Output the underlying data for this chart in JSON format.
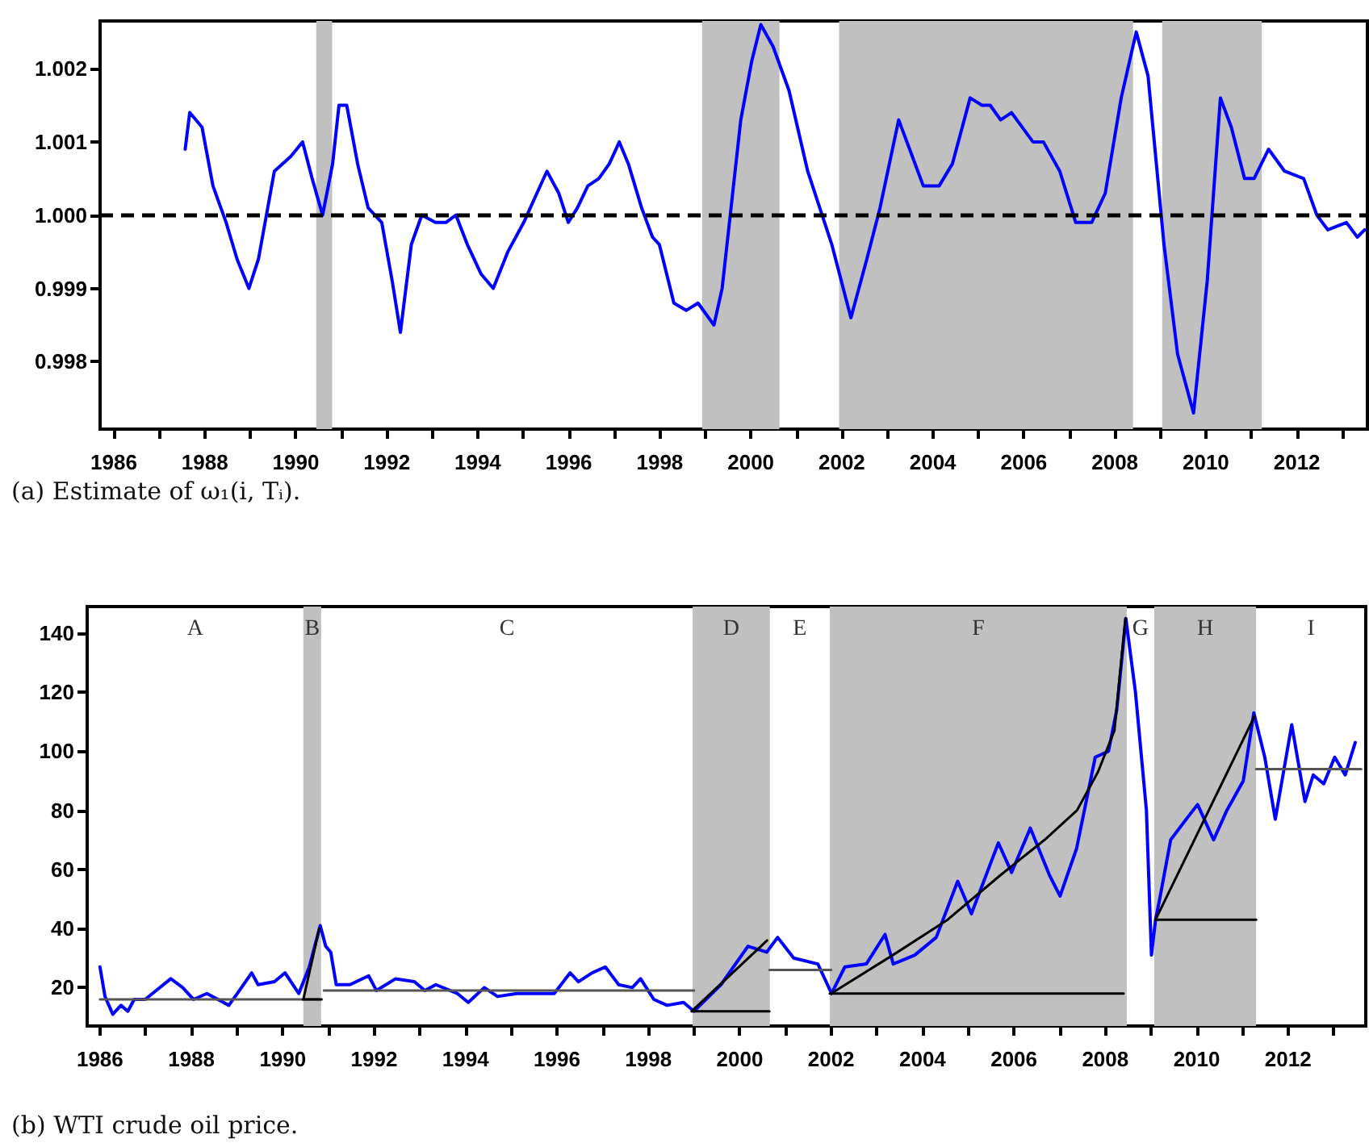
{
  "chart_data": [
    {
      "type": "line",
      "title": "(a) Estimate of ω₁(i, Tᵢ).",
      "marker": "none",
      "grid": false,
      "xlim": [
        1985.7,
        2013.55
      ],
      "ylim": [
        0.99708,
        1.00265
      ],
      "xticks": [
        1986,
        {
          "value": 1987,
          "label": null
        },
        1988,
        {
          "value": 1989,
          "label": null
        },
        1990,
        {
          "value": 1991,
          "label": null
        },
        1992,
        {
          "value": 1993,
          "label": null
        },
        1994,
        {
          "value": 1995,
          "label": null
        },
        1996,
        {
          "value": 1997,
          "label": null
        },
        1998,
        {
          "value": 1999,
          "label": null
        },
        2000,
        {
          "value": 2001,
          "label": null
        },
        2002,
        {
          "value": 2003,
          "label": null
        },
        2004,
        {
          "value": 2005,
          "label": null
        },
        2006,
        {
          "value": 2007,
          "label": null
        },
        2008,
        {
          "value": 2009,
          "label": null
        },
        2010,
        {
          "value": 2011,
          "label": null
        },
        2012,
        {
          "value": 2013,
          "label": null
        }
      ],
      "yticks": [
        0.998,
        0.999,
        {
          "value": 1,
          "label": "1.000"
        },
        1.001,
        1.002
      ],
      "ref_lines": [
        {
          "axis": "y",
          "value": 1,
          "color": "#000000",
          "line_style": "dashed"
        }
      ],
      "bands": [
        {
          "axis": "x",
          "from": 1990.45,
          "to": 1990.8,
          "color": "#c0c0c0"
        },
        {
          "axis": "x",
          "from": 1998.93,
          "to": 2000.63,
          "color": "#c0c0c0"
        },
        {
          "axis": "x",
          "from": 2001.94,
          "to": 2008.4,
          "color": "#c0c0c0"
        },
        {
          "axis": "x",
          "from": 2009.04,
          "to": 2011.23,
          "color": "#c0c0c0"
        }
      ],
      "series": [
        {
          "color": "#0000ff",
          "x": [
            1987.57,
            1987.67,
            1987.94,
            1988.18,
            1988.47,
            1988.71,
            1988.97,
            1989.18,
            1989.53,
            1989.89,
            1990.15,
            1990.36,
            1990.59,
            1990.81,
            1990.95,
            1991.12,
            1991.36,
            1991.59,
            1991.89,
            1992.12,
            1992.3,
            1992.54,
            1992.77,
            1993.07,
            1993.3,
            1993.52,
            1993.77,
            1994.07,
            1994.34,
            1994.66,
            1995.01,
            1995.3,
            1995.52,
            1995.78,
            1995.99,
            1996.19,
            1996.42,
            1996.66,
            1996.89,
            1997.11,
            1997.31,
            1997.6,
            1997.84,
            1997.99,
            1998.31,
            1998.58,
            1998.84,
            1999.19,
            1999.37,
            1999.78,
            2000.02,
            2000.22,
            2000.49,
            2000.84,
            2001.25,
            2001.78,
            2002.2,
            2002.55,
            2002.84,
            2003.25,
            2003.55,
            2003.79,
            2004.14,
            2004.43,
            2004.82,
            2005.08,
            2005.26,
            2005.49,
            2005.73,
            2006.2,
            2006.43,
            2006.79,
            2007.14,
            2007.49,
            2007.79,
            2008.14,
            2008.47,
            2008.73,
            2009.08,
            2009.38,
            2009.73,
            2010.03,
            2010.32,
            2010.56,
            2010.85,
            2011.06,
            2011.38,
            2011.73,
            2012.15,
            2012.44,
            2012.68,
            2013.09,
            2013.33,
            2013.49
          ],
          "values": [
            1.0009,
            1.0014,
            1.0012,
            1.0004,
            0.9999,
            0.9994,
            0.999,
            0.9994,
            1.0006,
            1.0008,
            1.001,
            1.0005,
            1.0,
            1.0007,
            1.0015,
            1.0015,
            1.0007,
            1.0001,
            0.9999,
            0.9991,
            0.9984,
            0.9996,
            1.0,
            0.9999,
            0.9999,
            1.0,
            0.9996,
            0.9992,
            0.999,
            0.9995,
            0.9999,
            1.0003,
            1.0006,
            1.0003,
            0.9999,
            1.0001,
            1.0004,
            1.0005,
            1.0007,
            1.001,
            1.0007,
            1.0001,
            0.9997,
            0.9996,
            0.9988,
            0.9987,
            0.9988,
            0.9985,
            0.999,
            1.0013,
            1.0021,
            1.0026,
            1.0023,
            1.0017,
            1.0006,
            0.9996,
            0.9986,
            0.9994,
            1.0001,
            1.0013,
            1.0008,
            1.0004,
            1.0004,
            1.0007,
            1.0016,
            1.0015,
            1.0015,
            1.0013,
            1.0014,
            1.001,
            1.001,
            1.0006,
            0.9999,
            0.9999,
            1.0003,
            1.0016,
            1.0025,
            1.0019,
            0.9996,
            0.9981,
            0.9973,
            0.9991,
            1.0016,
            1.0012,
            1.0005,
            1.0005,
            1.0009,
            1.0006,
            1.0005,
            1.0,
            0.9998,
            0.9999,
            0.9997,
            0.9998
          ]
        }
      ]
    },
    {
      "type": "line",
      "title": "(b) WTI crude oil price.",
      "marker": "none",
      "grid": false,
      "xlim": [
        1985.72,
        2013.7
      ],
      "ylim": [
        7,
        149
      ],
      "xticks": [
        1986,
        {
          "value": 1987,
          "label": null
        },
        1988,
        {
          "value": 1989,
          "label": null
        },
        1990,
        {
          "value": 1991,
          "label": null
        },
        1992,
        {
          "value": 1993,
          "label": null
        },
        1994,
        {
          "value": 1995,
          "label": null
        },
        1996,
        {
          "value": 1997,
          "label": null
        },
        1998,
        {
          "value": 1999,
          "label": null
        },
        2000,
        {
          "value": 2001,
          "label": null
        },
        2002,
        {
          "value": 2003,
          "label": null
        },
        2004,
        {
          "value": 2005,
          "label": null
        },
        2006,
        {
          "value": 2007,
          "label": null
        },
        2008,
        {
          "value": 2009,
          "label": null
        },
        2010,
        {
          "value": 2011,
          "label": null
        },
        2012,
        {
          "value": 2013,
          "label": null
        }
      ],
      "yticks": [
        20,
        40,
        60,
        80,
        100,
        120,
        140
      ],
      "bands": [
        {
          "axis": "x",
          "from": 1990.45,
          "to": 1990.84,
          "color": "#c0c0c0"
        },
        {
          "axis": "x",
          "from": 1998.97,
          "to": 2000.66,
          "color": "#c0c0c0"
        },
        {
          "axis": "x",
          "from": 2001.97,
          "to": 2008.47,
          "color": "#c0c0c0"
        },
        {
          "axis": "x",
          "from": 2009.07,
          "to": 2011.3,
          "color": "#c0c0c0"
        }
      ],
      "annotations": [
        "A",
        "B",
        "C",
        "D",
        "E",
        "F",
        "G",
        "H",
        "I"
      ],
      "series": [
        {
          "color": "#0000ff",
          "x": [
            1986.0,
            1986.11,
            1986.28,
            1986.46,
            1986.61,
            1986.75,
            1986.99,
            1987.23,
            1987.55,
            1987.81,
            1988.05,
            1988.34,
            1988.58,
            1988.82,
            1989.05,
            1989.32,
            1989.46,
            1989.82,
            1990.05,
            1990.35,
            1990.58,
            1990.82,
            1990.94,
            1991.05,
            1991.17,
            1991.47,
            1991.88,
            1992.05,
            1992.47,
            1992.88,
            1993.11,
            1993.35,
            1993.82,
            1994.06,
            1994.41,
            1994.7,
            1995.12,
            1995.47,
            1995.94,
            1996.29,
            1996.47,
            1996.77,
            1997.06,
            1997.35,
            1997.65,
            1997.83,
            1998.12,
            1998.41,
            1998.77,
            1999.0,
            1999.59,
            2000.18,
            2000.59,
            2000.83,
            2001.18,
            2001.71,
            2002.01,
            2002.3,
            2002.77,
            2003.18,
            2003.36,
            2003.83,
            2004.3,
            2004.77,
            2005.07,
            2005.66,
            2005.95,
            2006.36,
            2006.78,
            2007.01,
            2007.37,
            2007.78,
            2008.07,
            2008.25,
            2008.45,
            2008.66,
            2008.9,
            2009.01,
            2009.1,
            2009.19,
            2009.43,
            2009.72,
            2010.02,
            2010.37,
            2010.66,
            2011.02,
            2011.25,
            2011.49,
            2011.72,
            2012.08,
            2012.37,
            2012.55,
            2012.78,
            2013.02,
            2013.25,
            2013.47
          ],
          "values": [
            27,
            17,
            11,
            14,
            12,
            16,
            16,
            19,
            23,
            20,
            16,
            18,
            16,
            14,
            19,
            25,
            21,
            22,
            25,
            18,
            27,
            41,
            34,
            32,
            21,
            21,
            24,
            19,
            23,
            22,
            19,
            21,
            18,
            15,
            20,
            17,
            18,
            18,
            18,
            25,
            22,
            25,
            27,
            21,
            20,
            23,
            16,
            14,
            15,
            12,
            21,
            34,
            32,
            37,
            30,
            28,
            18,
            27,
            28,
            38,
            28,
            31,
            37,
            56,
            45,
            69,
            59,
            74,
            58,
            51,
            67,
            98,
            100,
            114,
            145,
            120,
            80,
            31,
            43,
            50,
            70,
            76,
            82,
            70,
            80,
            90,
            113,
            98,
            77,
            109,
            83,
            92,
            89,
            98,
            92,
            103
          ]
        },
        {
          "color": "#555555",
          "x": [
            1986.0,
            1990.8
          ],
          "values": [
            16,
            16
          ]
        },
        {
          "color": "#000000",
          "x": [
            1990.45,
            1990.85
          ],
          "values": [
            16,
            16
          ]
        },
        {
          "color": "#000000",
          "x": [
            1990.45,
            1990.8
          ],
          "values": [
            16,
            40
          ]
        },
        {
          "color": "#555555",
          "x": [
            1990.9,
            1999.0
          ],
          "values": [
            19,
            19
          ]
        },
        {
          "color": "#000000",
          "x": [
            1998.95,
            2000.65
          ],
          "values": [
            12,
            12
          ]
        },
        {
          "color": "#000000",
          "x": [
            1998.95,
            2000.6
          ],
          "values": [
            12,
            36
          ]
        },
        {
          "color": "#555555",
          "x": [
            2000.65,
            2002.0
          ],
          "values": [
            26,
            26
          ]
        },
        {
          "color": "#000000",
          "x": [
            2001.97,
            2008.4
          ],
          "values": [
            18,
            18
          ]
        },
        {
          "color": "#000000",
          "x": [
            2002.0,
            2003.35,
            2004.55,
            2005.7,
            2006.67,
            2007.38,
            2007.84,
            2008.2,
            2008.44
          ],
          "values": [
            18,
            31,
            43,
            58,
            70,
            80,
            93,
            107,
            145
          ]
        },
        {
          "color": "#000000",
          "x": [
            2009.1,
            2011.3
          ],
          "values": [
            43,
            43
          ]
        },
        {
          "color": "#000000",
          "x": [
            2009.1,
            2011.27
          ],
          "values": [
            43,
            112
          ]
        },
        {
          "color": "#555555",
          "x": [
            2011.3,
            2013.6
          ],
          "values": [
            94,
            94
          ]
        }
      ]
    }
  ]
}
